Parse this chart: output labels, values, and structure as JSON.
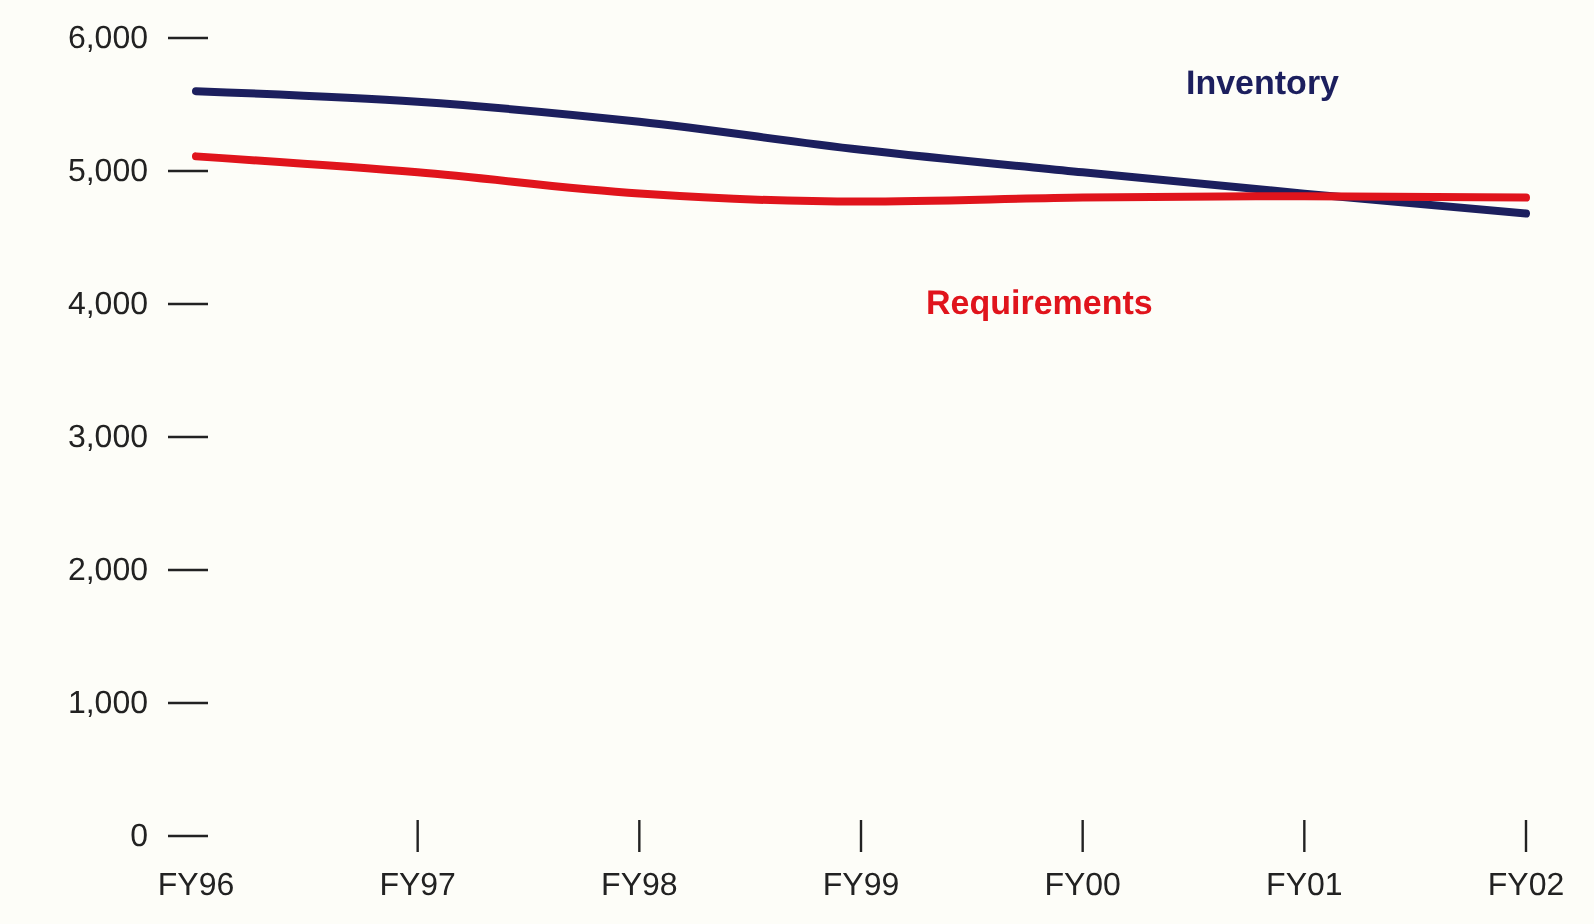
{
  "chart_data": {
    "type": "line",
    "categories": [
      "FY96",
      "FY97",
      "FY98",
      "FY99",
      "FY00",
      "FY01",
      "FY02"
    ],
    "series": [
      {
        "name": "Inventory",
        "color": "#1c1f5e",
        "values": [
          5600,
          5520,
          5370,
          5160,
          4990,
          4830,
          4680
        ]
      },
      {
        "name": "Requirements",
        "color": "#e0141c",
        "values": [
          5110,
          4990,
          4830,
          4770,
          4800,
          4810,
          4800
        ]
      }
    ],
    "ylim": [
      0,
      6000
    ],
    "yticks": [
      {
        "value": 0,
        "label": "0"
      },
      {
        "value": 1000,
        "label": "1,000"
      },
      {
        "value": 2000,
        "label": "2,000"
      },
      {
        "value": 3000,
        "label": "3,000"
      },
      {
        "value": 4000,
        "label": "4,000"
      },
      {
        "value": 5000,
        "label": "5,000"
      },
      {
        "value": 6000,
        "label": "6,000"
      }
    ],
    "grid": false,
    "legend": false,
    "marker": "none",
    "line_style": "solid"
  }
}
